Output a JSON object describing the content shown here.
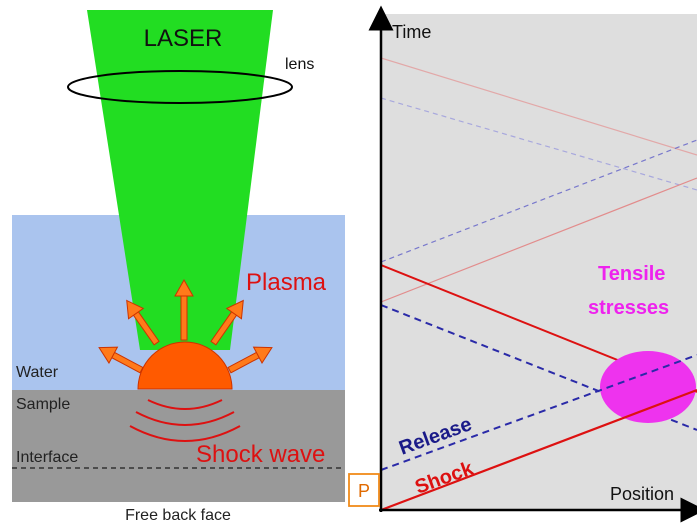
{
  "left_panel": {
    "laser_label": "LASER",
    "lens_label": "lens",
    "plasma_label": "Plasma",
    "water_label": "Water",
    "sample_label": "Sample",
    "interface_label": "Interface",
    "shock_wave_label": "Shock wave",
    "free_back_face_label": "Free back face"
  },
  "right_panel": {
    "y_axis_label": "Time",
    "x_axis_label": "Position",
    "origin_label": "P",
    "release_label": "Release",
    "shock_label": "Shock",
    "tensile_label_line1": "Tensile",
    "tensile_label_line2": "stresses"
  },
  "colors": {
    "laser_green": "#22dd22",
    "water_blue": "#aac4ee",
    "sample_gray": "#999999",
    "plasma_orange": "#ff5a00",
    "shock_red": "#dd1111",
    "release_blue": "#2a2aa8",
    "tensile_magenta": "#ee33ee",
    "diagram_bg": "#dedede"
  }
}
